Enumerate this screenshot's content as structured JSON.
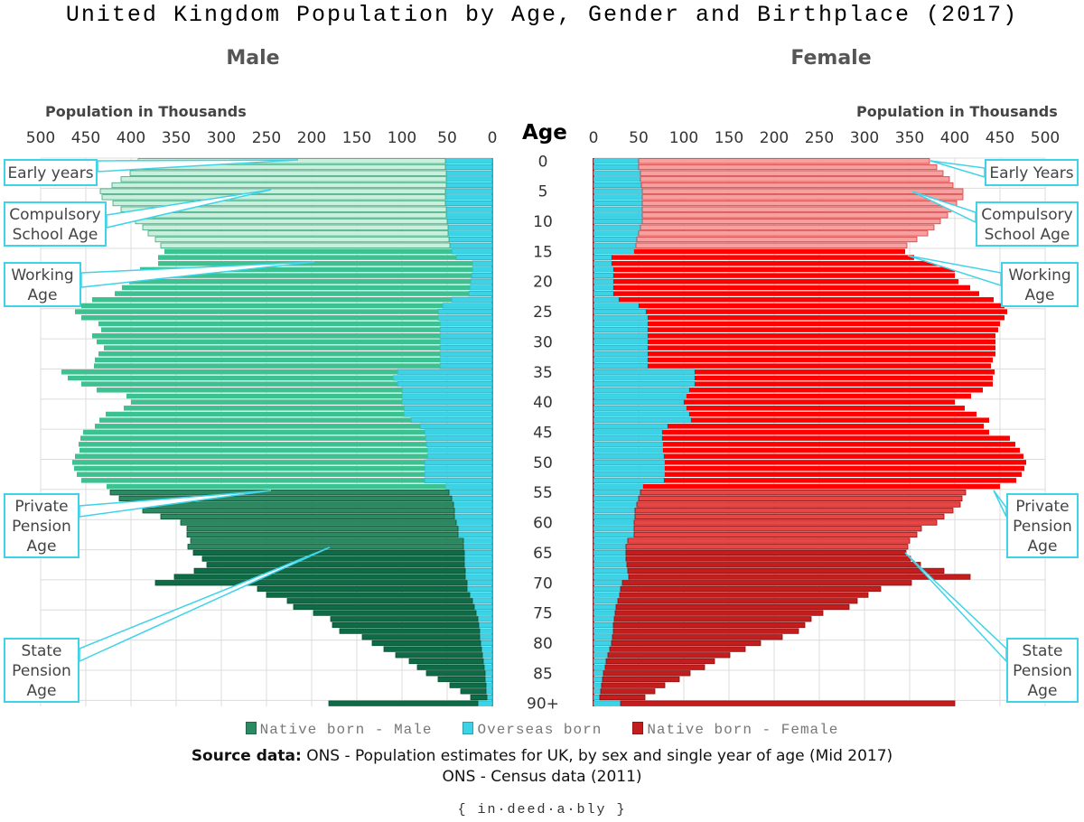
{
  "title": "United Kingdom Population by Age, Gender and Birthplace (2017)",
  "male_title": "Male",
  "female_title": "Female",
  "axis_caption": "Population in Thousands",
  "age_header": "Age",
  "colors": {
    "male_early": "#c8f0dd",
    "male_working": "#3cc190",
    "male_pension": "#2b8a62",
    "male_state": "#0d6b45",
    "overseas": "#3dd3e6",
    "female_early": "#f7a0a0",
    "female_working": "#ff0000",
    "female_pension": "#e84545",
    "female_state": "#c41d1d",
    "callout": "#3fd3e8"
  },
  "callouts": {
    "male": [
      {
        "label": "Early years"
      },
      {
        "label": "Compulsory School Age"
      },
      {
        "label": "Working Age"
      },
      {
        "label": "Private Pension Age"
      },
      {
        "label": "State Pension Age"
      }
    ],
    "female": [
      {
        "label": "Early Years"
      },
      {
        "label": "Compulsory School Age"
      },
      {
        "label": "Working Age"
      },
      {
        "label": "Private Pension Age"
      },
      {
        "label": "State Pension Age"
      }
    ]
  },
  "legend": {
    "native_male": "Native born - Male",
    "overseas": "Overseas born",
    "native_female": "Native born - Female"
  },
  "source": {
    "label": "Source data:",
    "line1": "ONS - Population estimates for UK, by sex and single year of age (Mid 2017)",
    "line2": "ONS - Census data (2011)"
  },
  "brand": "{ in·deed·a·bly }",
  "chart_data": {
    "type": "bar",
    "orientation": "horizontal",
    "layout": "population pyramid",
    "x_ticks": [
      500,
      450,
      400,
      350,
      300,
      250,
      200,
      150,
      100,
      50,
      0
    ],
    "xlim": [
      0,
      500
    ],
    "age_tick_labels": [
      "0",
      "5",
      "10",
      "15",
      "20",
      "25",
      "30",
      "35",
      "40",
      "45",
      "50",
      "55",
      "60",
      "65",
      "70",
      "75",
      "80",
      "85",
      "90+"
    ],
    "ages": [
      "0",
      "1",
      "2",
      "3",
      "4",
      "5",
      "6",
      "7",
      "8",
      "9",
      "10",
      "11",
      "12",
      "13",
      "14",
      "15",
      "16",
      "17",
      "18",
      "19",
      "20",
      "21",
      "22",
      "23",
      "24",
      "25",
      "26",
      "27",
      "28",
      "29",
      "30",
      "31",
      "32",
      "33",
      "34",
      "35",
      "36",
      "37",
      "38",
      "39",
      "40",
      "41",
      "42",
      "43",
      "44",
      "45",
      "46",
      "47",
      "48",
      "49",
      "50",
      "51",
      "52",
      "53",
      "54",
      "55",
      "56",
      "57",
      "58",
      "59",
      "60",
      "61",
      "62",
      "63",
      "64",
      "65",
      "66",
      "67",
      "68",
      "69",
      "70",
      "71",
      "72",
      "73",
      "74",
      "75",
      "76",
      "77",
      "78",
      "79",
      "80",
      "81",
      "82",
      "83",
      "84",
      "85",
      "86",
      "87",
      "88",
      "89",
      "90+"
    ],
    "series": [
      {
        "name": "Native born - Male",
        "values": [
          340,
          345,
          350,
          360,
          370,
          382,
          380,
          368,
          360,
          352,
          345,
          338,
          332,
          325,
          320,
          318,
          330,
          348,
          368,
          372,
          378,
          385,
          392,
          398,
          400,
          402,
          395,
          378,
          375,
          385,
          380,
          372,
          378,
          382,
          383,
          372,
          360,
          350,
          338,
          305,
          300,
          310,
          330,
          345,
          360,
          378,
          382,
          385,
          385,
          390,
          390,
          388,
          385,
          380,
          375,
          375,
          368,
          355,
          345,
          325,
          305,
          300,
          300,
          302,
          305,
          300,
          290,
          285,
          300,
          322,
          345,
          232,
          225,
          205,
          200,
          180,
          163,
          162,
          155,
          130,
          120,
          108,
          96,
          82,
          74,
          65,
          52,
          40,
          28,
          18,
          165
        ]
      },
      {
        "name": "Overseas born - Male",
        "values": [
          52,
          52,
          51,
          51,
          51,
          52,
          52,
          52,
          51,
          51,
          50,
          49,
          49,
          48,
          47,
          45,
          40,
          22,
          22,
          23,
          24,
          25,
          26,
          45,
          55,
          60,
          60,
          58,
          58,
          58,
          58,
          58,
          58,
          58,
          58,
          105,
          110,
          105,
          100,
          100,
          100,
          98,
          98,
          90,
          80,
          75,
          74,
          73,
          72,
          72,
          75,
          75,
          75,
          75,
          52,
          48,
          45,
          43,
          42,
          42,
          40,
          38,
          38,
          32,
          32,
          31,
          31,
          31,
          30,
          30,
          28,
          28,
          25,
          22,
          20,
          18,
          16,
          15,
          14,
          14,
          13,
          12,
          11,
          10,
          9,
          8,
          8,
          7,
          7,
          6,
          16
        ]
      },
      {
        "name": "Overseas born - Female",
        "values": [
          50,
          50,
          52,
          52,
          53,
          54,
          54,
          54,
          54,
          54,
          54,
          52,
          50,
          48,
          47,
          45,
          20,
          20,
          22,
          22,
          22,
          22,
          22,
          28,
          50,
          58,
          60,
          60,
          60,
          60,
          60,
          60,
          60,
          60,
          60,
          112,
          112,
          112,
          106,
          103,
          100,
          103,
          106,
          108,
          82,
          76,
          76,
          77,
          77,
          78,
          79,
          79,
          79,
          78,
          55,
          52,
          50,
          48,
          46,
          46,
          45,
          45,
          45,
          38,
          36,
          36,
          36,
          37,
          38,
          39,
          32,
          30,
          29,
          27,
          25,
          24,
          23,
          22,
          22,
          21,
          20,
          18,
          16,
          14,
          13,
          11,
          10,
          9,
          8,
          7,
          30
        ]
      },
      {
        "name": "Native born - Female",
        "values": [
          322,
          330,
          335,
          342,
          345,
          355,
          355,
          348,
          342,
          338,
          330,
          325,
          320,
          310,
          300,
          300,
          335,
          362,
          378,
          378,
          382,
          395,
          405,
          415,
          405,
          400,
          395,
          390,
          388,
          385,
          385,
          385,
          385,
          382,
          380,
          332,
          330,
          330,
          325,
          315,
          300,
          308,
          318,
          330,
          350,
          362,
          385,
          390,
          395,
          398,
          400,
          398,
          395,
          390,
          395,
          360,
          358,
          358,
          352,
          342,
          335,
          318,
          313,
          312,
          312,
          310,
          315,
          325,
          350,
          378,
          320,
          288,
          275,
          265,
          258,
          230,
          218,
          212,
          205,
          188,
          165,
          150,
          135,
          120,
          110,
          96,
          85,
          70,
          60,
          50,
          370
        ]
      }
    ]
  }
}
